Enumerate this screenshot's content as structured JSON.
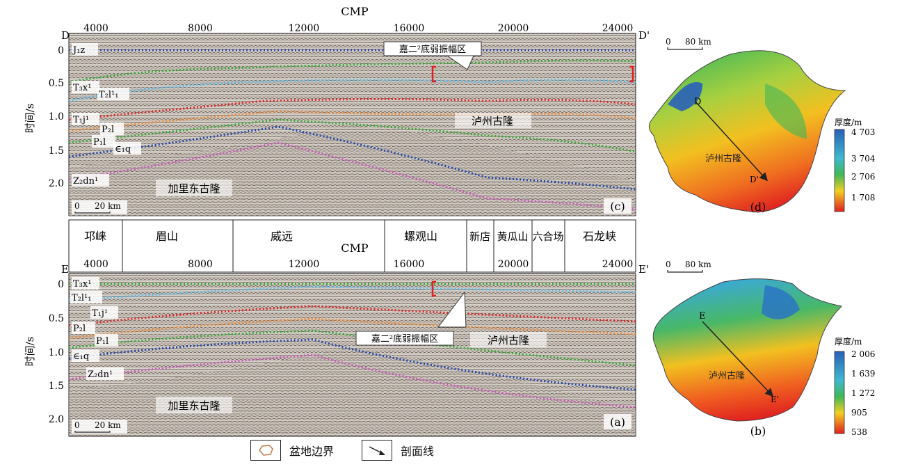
{
  "panel_c": {
    "axis_title": "CMP",
    "cmp_ticks": [
      "4000",
      "8000",
      "12000",
      "16000",
      "20000",
      "24000"
    ],
    "left_label": "D",
    "right_label": "D'",
    "ylabel": "时间/s",
    "time_ticks": [
      "0",
      "0.5",
      "1.0",
      "1.5",
      "2.0"
    ],
    "callout": "嘉二²底弱振幅区",
    "region_label": "泸州古隆",
    "uplift_label": "加里东古隆",
    "scale_label": "20 km",
    "scale_zero": "0",
    "panel_label": "(c)",
    "horizons": [
      {
        "name": "J1z",
        "label": "J₁z",
        "color": "#3344aa"
      },
      {
        "name": "T3x1",
        "label": "T₃x¹",
        "color": "#33aa33"
      },
      {
        "name": "T2l11",
        "label": "T₂l¹₁",
        "color": "#55bbee"
      },
      {
        "name": "T1j1",
        "label": "T₁j¹",
        "color": "#dd2222"
      },
      {
        "name": "P2l",
        "label": "P₂l",
        "color": "#ee8833"
      },
      {
        "name": "P1l",
        "label": "P₁l",
        "color": "#33aa33"
      },
      {
        "name": "E1q",
        "label": "∈₁q",
        "color": "#2244aa"
      },
      {
        "name": "Z2dn1",
        "label": "Z₂dn¹",
        "color": "#cc55bb"
      }
    ]
  },
  "location_bar": {
    "names": [
      "邛崃",
      "眉山",
      "威远",
      "螺观山",
      "新店",
      "黄瓜山",
      "六合场",
      "石龙峡"
    ]
  },
  "panel_a": {
    "axis_title": "CMP",
    "cmp_ticks": [
      "4000",
      "8000",
      "12000",
      "16000",
      "20000",
      "24000"
    ],
    "left_label": "E",
    "right_label": "E'",
    "ylabel": "时间/s",
    "time_ticks": [
      "0",
      "0.5",
      "1.0",
      "1.5",
      "2.0"
    ],
    "callout": "嘉二²底弱振幅区",
    "region_label": "泸州古隆",
    "uplift_label": "加里东古隆",
    "scale_label": "20 km",
    "scale_zero": "0",
    "panel_label": "(a)",
    "horizon_labels": [
      "T₃x¹",
      "T₂l¹₁",
      "T₁j¹",
      "P₂l",
      "P₁l",
      "∈₁q",
      "Z₂dn¹"
    ]
  },
  "map_d": {
    "scale_zero": "0",
    "scale_label": "80 km",
    "region_label": "泸州古隆",
    "line_start": "D",
    "line_end": "D'",
    "legend_title": "厚度/m",
    "legend_ticks": [
      "4 703",
      "3 704",
      "2 706",
      "1 708"
    ],
    "panel_label": "(d)"
  },
  "map_b": {
    "scale_zero": "0",
    "scale_label": "80 km",
    "region_label": "泸州古隆",
    "line_start": "E",
    "line_end": "E'",
    "legend_title": "厚度/m",
    "legend_ticks": [
      "2 006",
      "1 639",
      "1 272",
      "905",
      "538"
    ],
    "panel_label": "(b)"
  },
  "legend": {
    "basin_boundary": "盆地边界",
    "section_line": "剖面线"
  },
  "colors": {
    "ramp_low": "#e02020",
    "ramp_mid": "#f2d020",
    "ramp_green": "#38b858",
    "ramp_high": "#2860b8"
  }
}
